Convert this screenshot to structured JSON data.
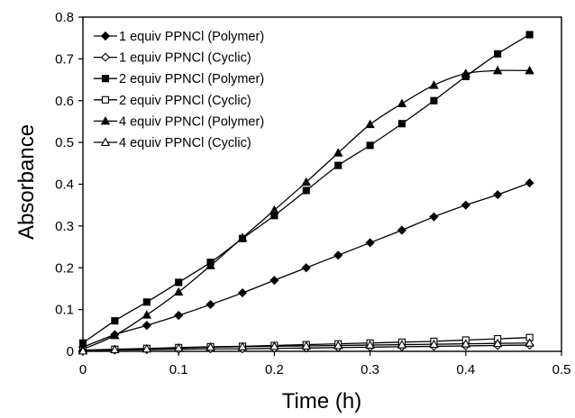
{
  "chart_data": {
    "type": "line",
    "title": "",
    "xlabel": "Time (h)",
    "ylabel": "Absorbance",
    "xlim": [
      0,
      0.5
    ],
    "ylim": [
      0,
      0.8
    ],
    "xticks": [
      "0",
      "0.1",
      "0.2",
      "0.3",
      "0.4",
      "0.5"
    ],
    "yticks": [
      "0",
      "0.1",
      "0.2",
      "0.3",
      "0.4",
      "0.5",
      "0.6",
      "0.7",
      "0.8"
    ],
    "grid": false,
    "legend_position": "top-left",
    "x": [
      0,
      0.0333,
      0.0667,
      0.1,
      0.1333,
      0.1667,
      0.2,
      0.2333,
      0.2667,
      0.3,
      0.3333,
      0.3667,
      0.4,
      0.4333,
      0.4667
    ],
    "series": [
      {
        "name": "1 equiv PPNCl (Polymer)",
        "marker": "diamond-filled",
        "values": [
          0.01,
          0.04,
          0.062,
          0.086,
          0.112,
          0.14,
          0.17,
          0.2,
          0.23,
          0.26,
          0.29,
          0.322,
          0.35,
          0.375,
          0.403
        ]
      },
      {
        "name": "1 equiv PPNCl (Cyclic)",
        "marker": "diamond-open",
        "values": [
          0.002,
          0.003,
          0.004,
          0.005,
          0.006,
          0.006,
          0.007,
          0.008,
          0.009,
          0.01,
          0.011,
          0.012,
          0.013,
          0.014,
          0.015
        ]
      },
      {
        "name": "2 equiv PPNCl (Polymer)",
        "marker": "square-filled",
        "values": [
          0.02,
          0.073,
          0.118,
          0.165,
          0.213,
          0.27,
          0.325,
          0.385,
          0.445,
          0.493,
          0.545,
          0.6,
          0.658,
          0.712,
          0.758
        ]
      },
      {
        "name": "2 equiv PPNCl (Cyclic)",
        "marker": "square-open",
        "values": [
          0.003,
          0.005,
          0.007,
          0.009,
          0.011,
          0.012,
          0.014,
          0.016,
          0.018,
          0.02,
          0.022,
          0.024,
          0.027,
          0.03,
          0.033
        ]
      },
      {
        "name": "4 equiv PPNCl (Polymer)",
        "marker": "triangle-filled",
        "values": [
          0.005,
          0.038,
          0.087,
          0.142,
          0.205,
          0.272,
          0.338,
          0.405,
          0.475,
          0.543,
          0.593,
          0.637,
          0.665,
          0.672,
          0.672
        ]
      },
      {
        "name": "4 equiv PPNCl (Cyclic)",
        "marker": "triangle-open",
        "values": [
          0.001,
          0.004,
          0.006,
          0.008,
          0.01,
          0.011,
          0.012,
          0.013,
          0.014,
          0.015,
          0.016,
          0.017,
          0.018,
          0.019,
          0.02
        ]
      }
    ],
    "colors": {
      "line": "#000000",
      "background": "#ffffff"
    }
  }
}
